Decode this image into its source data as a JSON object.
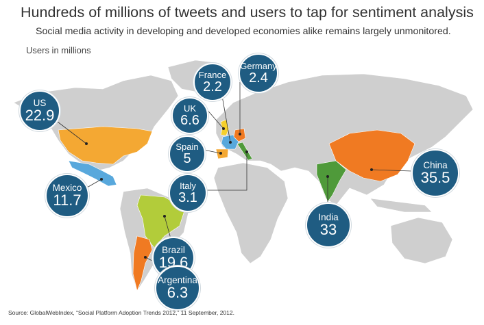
{
  "header": {
    "title": "Hundreds of millions of tweets and users to tap for sentiment analysis",
    "subtitle": "Social media activity in developing and developed economies alike remains largely unmonitored.",
    "units": "Users in millions"
  },
  "colors": {
    "bubble": "#1f5c82",
    "land": "#cfcfcf",
    "orange": "#f07a22",
    "amber": "#f4a833",
    "lime": "#b2cc3a",
    "green": "#4f9a3a",
    "lightblue": "#58a8dc",
    "yellow": "#f5cf2c"
  },
  "countries": [
    {
      "name": "US",
      "value": "22.9"
    },
    {
      "name": "Mexico",
      "value": "11.7"
    },
    {
      "name": "France",
      "value": "2.2"
    },
    {
      "name": "Germany",
      "value": "2.4"
    },
    {
      "name": "UK",
      "value": "6.6"
    },
    {
      "name": "Spain",
      "value": "5"
    },
    {
      "name": "Italy",
      "value": "3.1"
    },
    {
      "name": "Brazil",
      "value": "19.6"
    },
    {
      "name": "Argentina",
      "value": "6.3"
    },
    {
      "name": "India",
      "value": "33"
    },
    {
      "name": "China",
      "value": "35.5"
    }
  ],
  "source": "Source: GlobalWebIndex, “Social Platform Adoption Trends 2012,” 11 September, 2012."
}
